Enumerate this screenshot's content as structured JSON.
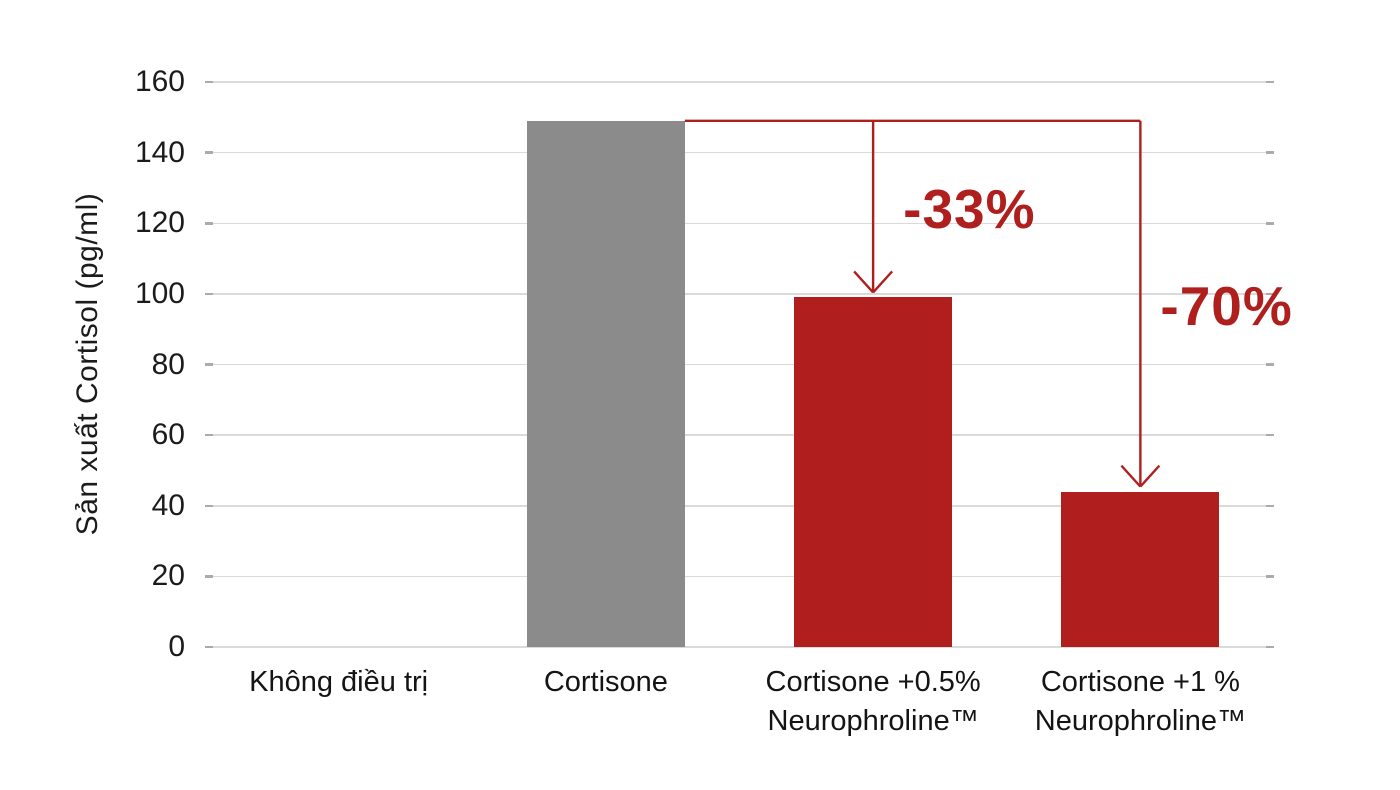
{
  "chart_data": {
    "type": "bar",
    "title": "",
    "xlabel": "",
    "ylabel": "Sản xuất Cortisol (pg/ml)",
    "ylim": [
      0,
      160
    ],
    "yticks": [
      0,
      20,
      40,
      60,
      80,
      100,
      120,
      140,
      160
    ],
    "grid": true,
    "legend": false,
    "categories": [
      "Không điều trị",
      "Cortisone",
      "Cortisone +0.5%\nNeurophroline™",
      "Cortisone +1 %\nNeurophroline™"
    ],
    "values": [
      0,
      149,
      99,
      44
    ],
    "bar_colors": [
      "#8b8b8b",
      "#8b8b8b",
      "#b01e1e",
      "#b01e1e"
    ],
    "annotations": [
      {
        "label": "-33%",
        "from_index": 1,
        "to_index": 2
      },
      {
        "label": "-70%",
        "from_index": 1,
        "to_index": 3
      }
    ]
  },
  "colors": {
    "annotation_red": "#ae1f1e",
    "arrow_red": "#ae1f1e",
    "gridline": "#dadada",
    "gridline_end": "#ababab",
    "axis_text": "#1b1b1b"
  }
}
